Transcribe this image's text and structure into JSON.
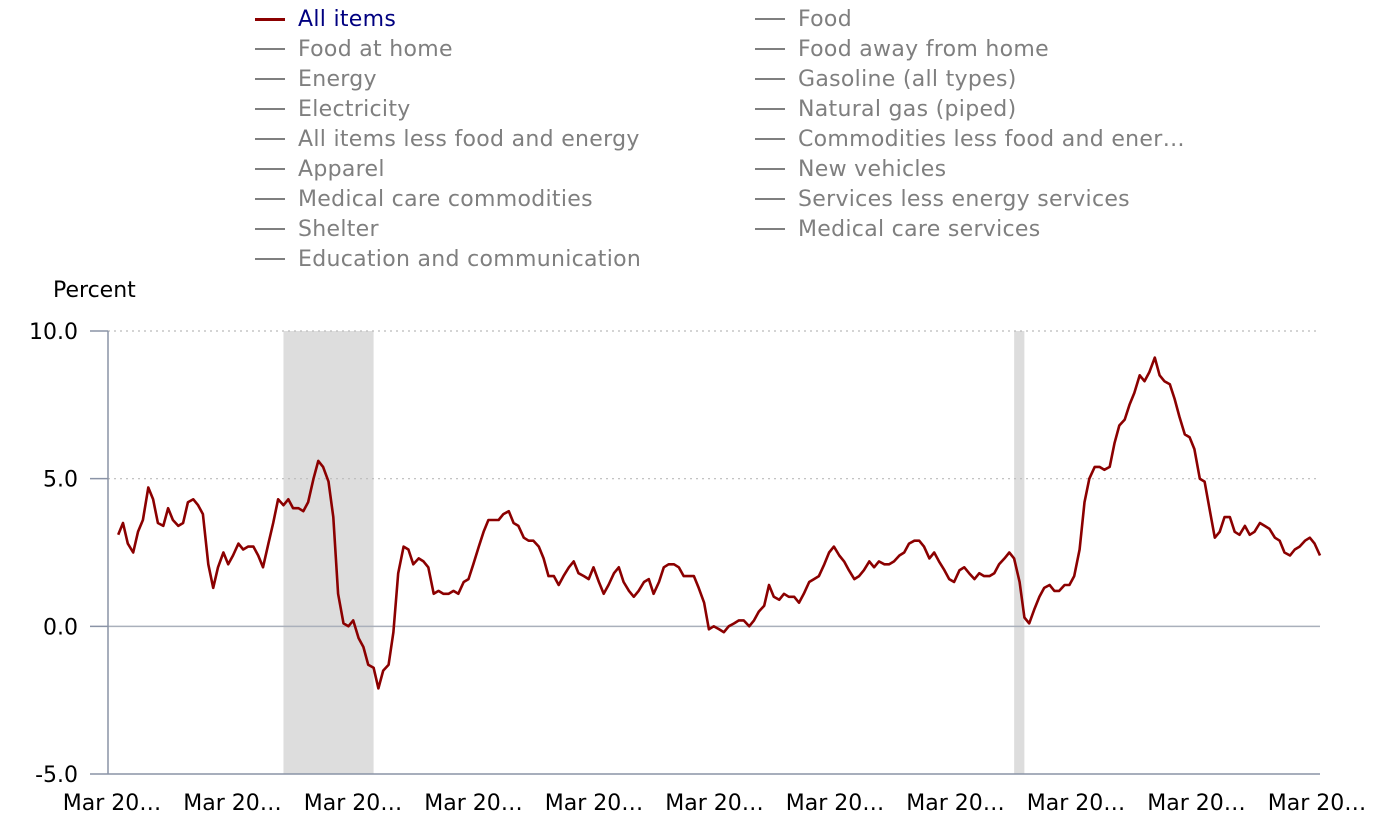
{
  "legend": {
    "col1": [
      "All items",
      "Food at home",
      "Energy",
      "Electricity",
      "All items less food and energy",
      "Apparel",
      "Medical care commodities",
      "Shelter",
      "Education and communication"
    ],
    "col2": [
      "Food",
      "Food away from home",
      "Gasoline (all types)",
      "Natural gas (piped)",
      "Commodities less food and ener…",
      "New vehicles",
      "Services less energy services",
      "Medical care services"
    ],
    "active": "All items"
  },
  "colors": {
    "series": "#8b0000",
    "active_label": "#000080",
    "inactive": "#7f7f7f",
    "recession": "#dddddd",
    "gridline": "#bbbbbb"
  },
  "chart_data": {
    "type": "line",
    "ylabel": "Percent",
    "ylim": [
      -5,
      10
    ],
    "yticks": [
      "10.0",
      "5.0",
      "0.0",
      "-5.0"
    ],
    "xticks": [
      "Mar 20…",
      "Mar 20…",
      "Mar 20…",
      "Mar 20…",
      "Mar 20…",
      "Mar 20…",
      "Mar 20…",
      "Mar 20…",
      "Mar 20…",
      "Mar 20…",
      "Mar 20…"
    ],
    "grid": "dotted horizontal at 10.0 and 5.0",
    "recession_bands": [
      [
        2007.92,
        2009.42
      ],
      [
        2020.08,
        2020.25
      ]
    ],
    "series": [
      {
        "name": "All items",
        "x": [
          2005.17,
          2005.25,
          2005.33,
          2005.42,
          2005.5,
          2005.58,
          2005.67,
          2005.75,
          2005.83,
          2005.92,
          2006.0,
          2006.08,
          2006.17,
          2006.25,
          2006.33,
          2006.42,
          2006.5,
          2006.58,
          2006.67,
          2006.75,
          2006.83,
          2006.92,
          2007.0,
          2007.08,
          2007.17,
          2007.25,
          2007.33,
          2007.42,
          2007.5,
          2007.58,
          2007.67,
          2007.75,
          2007.83,
          2007.92,
          2008.0,
          2008.08,
          2008.17,
          2008.25,
          2008.33,
          2008.42,
          2008.5,
          2008.58,
          2008.67,
          2008.75,
          2008.83,
          2008.92,
          2009.0,
          2009.08,
          2009.17,
          2009.25,
          2009.33,
          2009.42,
          2009.5,
          2009.58,
          2009.67,
          2009.75,
          2009.83,
          2009.92,
          2010.0,
          2010.08,
          2010.17,
          2010.25,
          2010.33,
          2010.42,
          2010.5,
          2010.58,
          2010.67,
          2010.75,
          2010.83,
          2010.92,
          2011.0,
          2011.08,
          2011.17,
          2011.25,
          2011.33,
          2011.42,
          2011.5,
          2011.58,
          2011.67,
          2011.75,
          2011.83,
          2011.92,
          2012.0,
          2012.08,
          2012.17,
          2012.25,
          2012.33,
          2012.42,
          2012.5,
          2012.58,
          2012.67,
          2012.75,
          2012.83,
          2012.92,
          2013.0,
          2013.08,
          2013.17,
          2013.25,
          2013.33,
          2013.42,
          2013.5,
          2013.58,
          2013.67,
          2013.75,
          2013.83,
          2013.92,
          2014.0,
          2014.08,
          2014.17,
          2014.25,
          2014.33,
          2014.42,
          2014.5,
          2014.58,
          2014.67,
          2014.75,
          2014.83,
          2014.92,
          2015.0,
          2015.08,
          2015.17,
          2015.25,
          2015.33,
          2015.42,
          2015.5,
          2015.58,
          2015.67,
          2015.75,
          2015.83,
          2015.92,
          2016.0,
          2016.08,
          2016.17,
          2016.25,
          2016.33,
          2016.42,
          2016.5,
          2016.58,
          2016.67,
          2016.75,
          2016.83,
          2016.92,
          2017.0,
          2017.08,
          2017.17,
          2017.25,
          2017.33,
          2017.42,
          2017.5,
          2017.58,
          2017.67,
          2017.75,
          2017.83,
          2017.92,
          2018.0,
          2018.08,
          2018.17,
          2018.25,
          2018.33,
          2018.42,
          2018.5,
          2018.58,
          2018.67,
          2018.75,
          2018.83,
          2018.92,
          2019.0,
          2019.08,
          2019.17,
          2019.25,
          2019.33,
          2019.42,
          2019.5,
          2019.58,
          2019.67,
          2019.75,
          2019.83,
          2019.92,
          2020.0,
          2020.08,
          2020.17,
          2020.25,
          2020.33,
          2020.42,
          2020.5,
          2020.58,
          2020.67,
          2020.75,
          2020.83,
          2020.92,
          2021.0,
          2021.08,
          2021.17,
          2021.25,
          2021.33,
          2021.42,
          2021.5,
          2021.58,
          2021.67,
          2021.75,
          2021.83,
          2021.92,
          2022.0,
          2022.08,
          2022.17,
          2022.25,
          2022.33,
          2022.42,
          2022.5,
          2022.58,
          2022.67,
          2022.75,
          2022.83,
          2022.92,
          2023.0,
          2023.08,
          2023.17,
          2023.25,
          2023.33,
          2023.42,
          2023.5,
          2023.58,
          2023.67,
          2023.75,
          2023.83,
          2023.92,
          2024.0,
          2024.08,
          2024.17,
          2024.25,
          2024.33,
          2024.42,
          2024.5,
          2024.58,
          2024.67,
          2024.75,
          2024.83,
          2024.92,
          2025.0,
          2025.08,
          2025.17
        ],
        "values": [
          3.1,
          3.5,
          2.8,
          2.5,
          3.2,
          3.6,
          4.7,
          4.3,
          3.5,
          3.4,
          4.0,
          3.6,
          3.4,
          3.5,
          4.2,
          4.3,
          4.1,
          3.8,
          2.1,
          1.3,
          2.0,
          2.5,
          2.1,
          2.4,
          2.8,
          2.6,
          2.7,
          2.7,
          2.4,
          2.0,
          2.8,
          3.5,
          4.3,
          4.1,
          4.3,
          4.0,
          4.0,
          3.9,
          4.2,
          5.0,
          5.6,
          5.4,
          4.9,
          3.7,
          1.1,
          0.1,
          0.0,
          0.2,
          -0.4,
          -0.7,
          -1.3,
          -1.4,
          -2.1,
          -1.5,
          -1.3,
          -0.2,
          1.8,
          2.7,
          2.6,
          2.1,
          2.3,
          2.2,
          2.0,
          1.1,
          1.2,
          1.1,
          1.1,
          1.2,
          1.1,
          1.5,
          1.6,
          2.1,
          2.7,
          3.2,
          3.6,
          3.6,
          3.6,
          3.8,
          3.9,
          3.5,
          3.4,
          3.0,
          2.9,
          2.9,
          2.7,
          2.3,
          1.7,
          1.7,
          1.4,
          1.7,
          2.0,
          2.2,
          1.8,
          1.7,
          1.6,
          2.0,
          1.5,
          1.1,
          1.4,
          1.8,
          2.0,
          1.5,
          1.2,
          1.0,
          1.2,
          1.5,
          1.6,
          1.1,
          1.5,
          2.0,
          2.1,
          2.1,
          2.0,
          1.7,
          1.7,
          1.7,
          1.3,
          0.8,
          -0.1,
          0.0,
          -0.1,
          -0.2,
          0.0,
          0.1,
          0.2,
          0.2,
          0.0,
          0.2,
          0.5,
          0.7,
          1.4,
          1.0,
          0.9,
          1.1,
          1.0,
          1.0,
          0.8,
          1.1,
          1.5,
          1.6,
          1.7,
          2.1,
          2.5,
          2.7,
          2.4,
          2.2,
          1.9,
          1.6,
          1.7,
          1.9,
          2.2,
          2.0,
          2.2,
          2.1,
          2.1,
          2.2,
          2.4,
          2.5,
          2.8,
          2.9,
          2.9,
          2.7,
          2.3,
          2.5,
          2.2,
          1.9,
          1.6,
          1.5,
          1.9,
          2.0,
          1.8,
          1.6,
          1.8,
          1.7,
          1.7,
          1.8,
          2.1,
          2.3,
          2.5,
          2.3,
          1.5,
          0.3,
          0.1,
          0.6,
          1.0,
          1.3,
          1.4,
          1.2,
          1.2,
          1.4,
          1.4,
          1.7,
          2.6,
          4.2,
          5.0,
          5.4,
          5.4,
          5.3,
          5.4,
          6.2,
          6.8,
          7.0,
          7.5,
          7.9,
          8.5,
          8.3,
          8.6,
          9.1,
          8.5,
          8.3,
          8.2,
          7.7,
          7.1,
          6.5,
          6.4,
          6.0,
          5.0,
          4.9,
          4.0,
          3.0,
          3.2,
          3.7,
          3.7,
          3.2,
          3.1,
          3.4,
          3.1,
          3.2,
          3.5,
          3.4,
          3.3,
          3.0,
          2.9,
          2.5,
          2.4,
          2.6,
          2.7,
          2.9,
          3.0,
          2.8,
          2.4
        ]
      }
    ]
  }
}
